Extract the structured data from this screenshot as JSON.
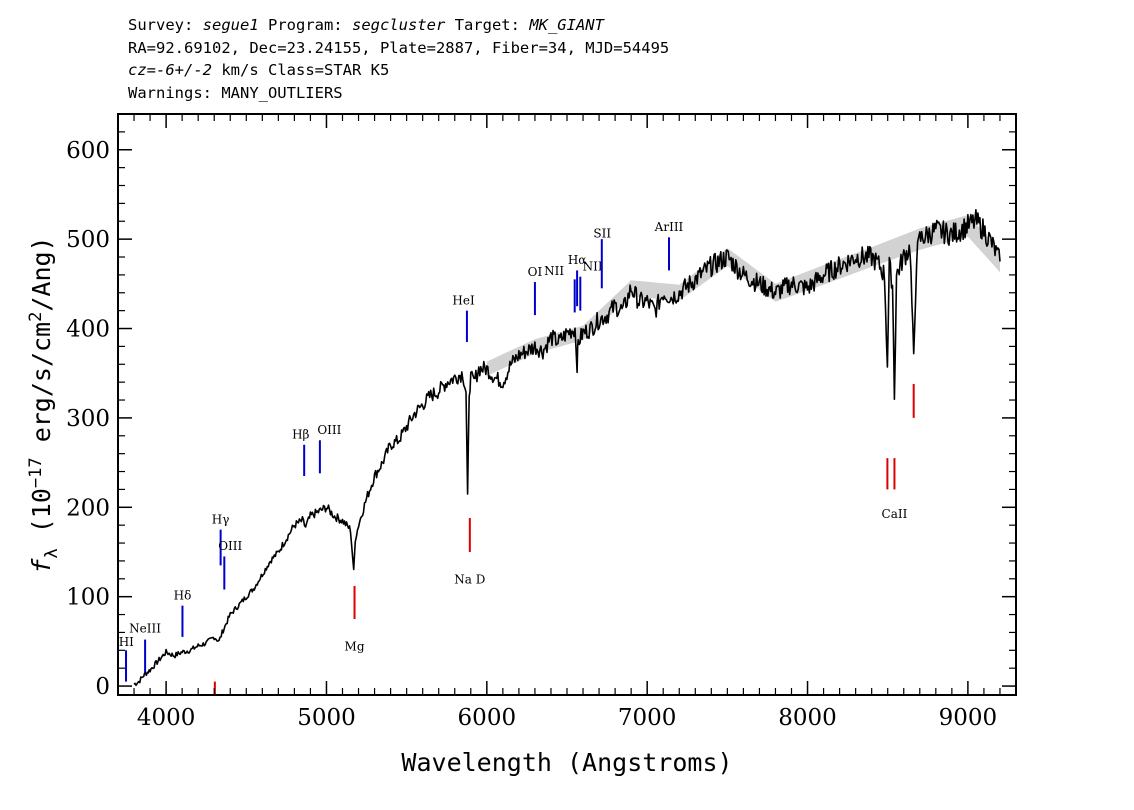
{
  "header": {
    "line1": {
      "survey_label": "Survey: ",
      "survey": "segue1",
      "program_label": " Program: ",
      "program": "segcluster",
      "target_label": " Target: ",
      "target": "MK_GIANT"
    },
    "line2": "RA=92.69102, Dec=23.24155, Plate=2887, Fiber=34, MJD=54495",
    "line3": {
      "cz_value": "cz=-6+/-2",
      "rest": " km/s Class=STAR K5"
    },
    "line4": "Warnings: MANY_OUTLIERS"
  },
  "colors": {
    "flux": "#000000",
    "error_band": "#b4b4b4",
    "emission": "#0000cc",
    "absorption": "#dd0000"
  },
  "chart_data": {
    "type": "line",
    "xlabel": "Wavelength (Angstroms)",
    "ylabel_parts": {
      "f": "f",
      "sub": "λ",
      "open": " (10",
      "exp1": "−17",
      "mid": " erg/s/cm",
      "exp2": "2",
      "close": "/Ang)"
    },
    "xlim": [
      3700,
      9300
    ],
    "ylim": [
      -10,
      640
    ],
    "x_ticks": [
      4000,
      5000,
      6000,
      7000,
      8000,
      9000
    ],
    "x_tick_labels": [
      "4000",
      "5000",
      "6000",
      "7000",
      "8000",
      "9000"
    ],
    "y_ticks": [
      0,
      100,
      200,
      300,
      400,
      500,
      600
    ],
    "y_tick_labels": [
      "0",
      "100",
      "200",
      "300",
      "400",
      "500",
      "600"
    ],
    "series": [
      {
        "x": [
          3800,
          3830,
          3860,
          3900,
          3950,
          4000,
          4050,
          4100,
          4150,
          4200,
          4250,
          4300,
          4330,
          4350,
          4400,
          4450,
          4500,
          4550,
          4600,
          4650,
          4700,
          4750,
          4800,
          4850,
          4870,
          4900,
          4950,
          5000,
          5050,
          5100,
          5150,
          5170,
          5180,
          5200,
          5250,
          5300,
          5350,
          5400,
          5450,
          5500,
          5550,
          5600,
          5650,
          5700,
          5750,
          5800,
          5850,
          5870,
          5880,
          5890,
          5900,
          5920,
          5950,
          6000,
          6050,
          6100,
          6150,
          6200,
          6250,
          6300,
          6350,
          6400,
          6450,
          6500,
          6550,
          6563,
          6570,
          6600,
          6650,
          6700,
          6750,
          6800,
          6850,
          6900,
          6950,
          7000,
          7050,
          7100,
          7150,
          7200,
          7300,
          7400,
          7500,
          7600,
          7700,
          7800,
          7900,
          8000,
          8100,
          8200,
          8300,
          8400,
          8450,
          8480,
          8498,
          8510,
          8530,
          8542,
          8555,
          8600,
          8640,
          8662,
          8680,
          8700,
          8800,
          8900,
          9000,
          9050,
          9100,
          9150,
          9200
        ],
        "y": [
          2,
          5,
          12,
          18,
          28,
          38,
          34,
          38,
          40,
          45,
          48,
          55,
          50,
          60,
          80,
          90,
          100,
          110,
          125,
          140,
          150,
          165,
          180,
          185,
          178,
          190,
          195,
          200,
          190,
          185,
          175,
          128,
          165,
          180,
          210,
          235,
          250,
          270,
          275,
          290,
          305,
          315,
          325,
          330,
          340,
          345,
          350,
          330,
          210,
          330,
          345,
          340,
          355,
          355,
          345,
          340,
          360,
          370,
          375,
          380,
          375,
          390,
          385,
          395,
          400,
          360,
          385,
          395,
          400,
          410,
          415,
          425,
          420,
          445,
          430,
          430,
          420,
          440,
          435,
          440,
          455,
          470,
          480,
          460,
          450,
          440,
          450,
          445,
          460,
          470,
          480,
          480,
          470,
          460,
          360,
          470,
          450,
          325,
          460,
          480,
          490,
          365,
          480,
          500,
          510,
          505,
          515,
          520,
          510,
          495,
          475
        ]
      }
    ],
    "error_band": {
      "x": [
        6000,
        6300,
        6600,
        6900,
        7200,
        7500,
        7800,
        8100,
        8400,
        8700,
        9000,
        9200
      ],
      "half_width": [
        8,
        8,
        8,
        9,
        9,
        10,
        10,
        11,
        11,
        12,
        12,
        12
      ]
    },
    "emission_lines": [
      {
        "label": "HI",
        "x": 3750,
        "y0": 5,
        "y1": 40,
        "lx": 3752,
        "ly": 45
      },
      {
        "label": "NeIII",
        "x": 3869,
        "y0": 15,
        "y1": 52,
        "lx": 3869,
        "ly": 60
      },
      {
        "label": "Hδ",
        "x": 4102,
        "y0": 55,
        "y1": 90,
        "lx": 4102,
        "ly": 97
      },
      {
        "label": "Hγ",
        "x": 4340,
        "y0": 135,
        "y1": 175,
        "lx": 4340,
        "ly": 182
      },
      {
        "label": "OIII",
        "x": 4363,
        "y0": 108,
        "y1": 145,
        "lx": 4400,
        "ly": 152
      },
      {
        "label": "Hβ",
        "x": 4861,
        "y0": 235,
        "y1": 270,
        "lx": 4840,
        "ly": 277
      },
      {
        "label": "OIII",
        "x": 4959,
        "y0": 238,
        "y1": 275,
        "lx": 5018,
        "ly": 282
      },
      {
        "label": "HeI",
        "x": 5876,
        "y0": 385,
        "y1": 420,
        "lx": 5855,
        "ly": 427
      },
      {
        "label": "OI",
        "x": 6300,
        "y0": 415,
        "y1": 452,
        "lx": 6300,
        "ly": 459
      },
      {
        "label": "NII",
        "x": 6548,
        "y0": 418,
        "y1": 455,
        "lx": 6420,
        "ly": 460
      },
      {
        "label": "Hα",
        "x": 6563,
        "y0": 425,
        "y1": 465,
        "lx": 6563,
        "ly": 472
      },
      {
        "label": "NII",
        "x": 6583,
        "y0": 420,
        "y1": 458,
        "lx": 6660,
        "ly": 465
      },
      {
        "label": "SII",
        "x": 6717,
        "y0": 445,
        "y1": 500,
        "lx": 6720,
        "ly": 502
      },
      {
        "label": "ArIII",
        "x": 7136,
        "y0": 465,
        "y1": 502,
        "lx": 7136,
        "ly": 509
      }
    ],
    "absorption_lines": [
      {
        "label": "",
        "x": 4304,
        "y0": -10,
        "y1": 5,
        "lx": 4304,
        "ly": 10
      },
      {
        "label": "Mg",
        "x": 5175,
        "y0": 75,
        "y1": 112,
        "lx": 5175,
        "ly": 40
      },
      {
        "label": "Na D",
        "x": 5894,
        "y0": 150,
        "y1": 188,
        "lx": 5894,
        "ly": 115
      },
      {
        "label": "",
        "x": 8498,
        "y0": 220,
        "y1": 255,
        "lx": 8498,
        "ly": 200
      },
      {
        "label": "CaII",
        "x": 8542,
        "y0": 220,
        "y1": 255,
        "lx": 8542,
        "ly": 188
      },
      {
        "label": "",
        "x": 8662,
        "y0": 300,
        "y1": 338,
        "lx": 8662,
        "ly": 200
      }
    ]
  }
}
